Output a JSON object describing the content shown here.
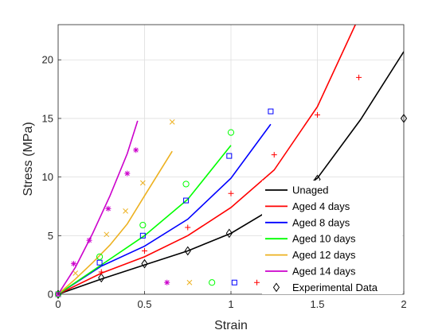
{
  "chart_data": {
    "type": "line",
    "title": "",
    "xlabel": "Strain",
    "ylabel": "Stress (MPa)",
    "xlim": [
      0,
      2
    ],
    "ylim": [
      0,
      23
    ],
    "xticks": [
      0,
      0.5,
      1,
      1.5,
      2
    ],
    "xtick_labels": [
      "0",
      "0.5",
      "1",
      "1.5",
      "2"
    ],
    "yticks": [
      0,
      5,
      10,
      15,
      20
    ],
    "ytick_labels": [
      "0",
      "5",
      "10",
      "15",
      "20"
    ],
    "grid": true,
    "legend_position": "bottom-right",
    "series": [
      {
        "name": "Unaged",
        "color": "#000000",
        "marker": "diamond",
        "line": {
          "x": [
            0,
            0.25,
            0.5,
            0.75,
            1.0,
            1.25,
            1.5,
            1.75,
            2.0
          ],
          "y": [
            0,
            1.3,
            2.5,
            3.7,
            5.2,
            7.4,
            9.9,
            14.9,
            20.7
          ]
        },
        "points": {
          "x": [
            0,
            0.25,
            0.5,
            0.75,
            0.99,
            1.5,
            2.0
          ],
          "y": [
            0,
            1.4,
            2.6,
            3.7,
            5.2,
            9.8,
            15.0
          ]
        }
      },
      {
        "name": "Aged 4 days",
        "color": "#ff0000",
        "marker": "plus",
        "line": {
          "x": [
            0,
            0.25,
            0.5,
            0.75,
            1.0,
            1.25,
            1.5,
            1.72
          ],
          "y": [
            0,
            1.8,
            3.2,
            5.0,
            7.4,
            10.6,
            16.0,
            23.0
          ]
        },
        "points": {
          "x": [
            0,
            0.25,
            0.5,
            0.75,
            1.0,
            1.25,
            1.5,
            1.74
          ],
          "y": [
            0,
            1.9,
            3.7,
            5.7,
            8.6,
            11.9,
            15.3,
            18.5
          ]
        }
      },
      {
        "name": "Aged 8 days",
        "color": "#0000ff",
        "marker": "square",
        "line": {
          "x": [
            0,
            0.25,
            0.5,
            0.75,
            1.0,
            1.23
          ],
          "y": [
            0,
            2.4,
            4.1,
            6.4,
            9.9,
            14.5
          ]
        },
        "points": {
          "x": [
            0,
            0.24,
            0.49,
            0.74,
            0.99,
            1.23
          ],
          "y": [
            0,
            2.7,
            5.0,
            8.0,
            11.8,
            15.6
          ]
        }
      },
      {
        "name": "Aged 10 days",
        "color": "#00ff00",
        "marker": "circle",
        "line": {
          "x": [
            0,
            0.25,
            0.5,
            0.75,
            1.0
          ],
          "y": [
            0,
            2.5,
            5.0,
            8.1,
            12.7
          ]
        },
        "points": {
          "x": [
            0,
            0.24,
            0.49,
            0.74,
            1.0
          ],
          "y": [
            0,
            3.2,
            5.9,
            9.4,
            13.8
          ]
        }
      },
      {
        "name": "Aged 12 days",
        "color": "#edb120",
        "marker": "x",
        "line": {
          "x": [
            0,
            0.1,
            0.2,
            0.3,
            0.4,
            0.5,
            0.66
          ],
          "y": [
            0,
            1.3,
            2.7,
            4.2,
            6.0,
            8.4,
            12.2
          ]
        },
        "points": {
          "x": [
            0,
            0.1,
            0.28,
            0.39,
            0.49,
            0.66
          ],
          "y": [
            0,
            1.8,
            5.1,
            7.1,
            9.5,
            14.7
          ]
        }
      },
      {
        "name": "Aged 14 days",
        "color": "#cc00cc",
        "marker": "asterisk",
        "line": {
          "x": [
            0,
            0.1,
            0.2,
            0.3,
            0.4,
            0.46
          ],
          "y": [
            0,
            2.3,
            5.2,
            8.4,
            12.0,
            14.8
          ]
        },
        "points": {
          "x": [
            0,
            0.09,
            0.18,
            0.29,
            0.4,
            0.45
          ],
          "y": [
            0,
            2.6,
            4.6,
            7.3,
            10.3,
            12.3
          ]
        }
      }
    ],
    "extra_markers": [
      {
        "series": "Aged 14 days",
        "x": 0.63,
        "y": 1.0
      },
      {
        "series": "Aged 12 days",
        "x": 0.76,
        "y": 1.0
      },
      {
        "series": "Aged 10 days",
        "x": 0.89,
        "y": 1.0
      },
      {
        "series": "Aged 8 days",
        "x": 1.02,
        "y": 1.0
      },
      {
        "series": "Aged 4 days",
        "x": 1.15,
        "y": 1.0
      }
    ],
    "legend": {
      "entries": [
        {
          "label": "Unaged",
          "color": "#000000",
          "type": "line"
        },
        {
          "label": "Aged 4 days",
          "color": "#ff0000",
          "type": "line"
        },
        {
          "label": "Aged 8 days",
          "color": "#0000ff",
          "type": "line"
        },
        {
          "label": "Aged 10 days",
          "color": "#00ff00",
          "type": "line"
        },
        {
          "label": "Aged 12 days",
          "color": "#edb120",
          "type": "line"
        },
        {
          "label": "Aged 14 days",
          "color": "#cc00cc",
          "type": "line"
        },
        {
          "label": "Experimental Data",
          "color": "#000000",
          "type": "diamond"
        }
      ]
    }
  }
}
